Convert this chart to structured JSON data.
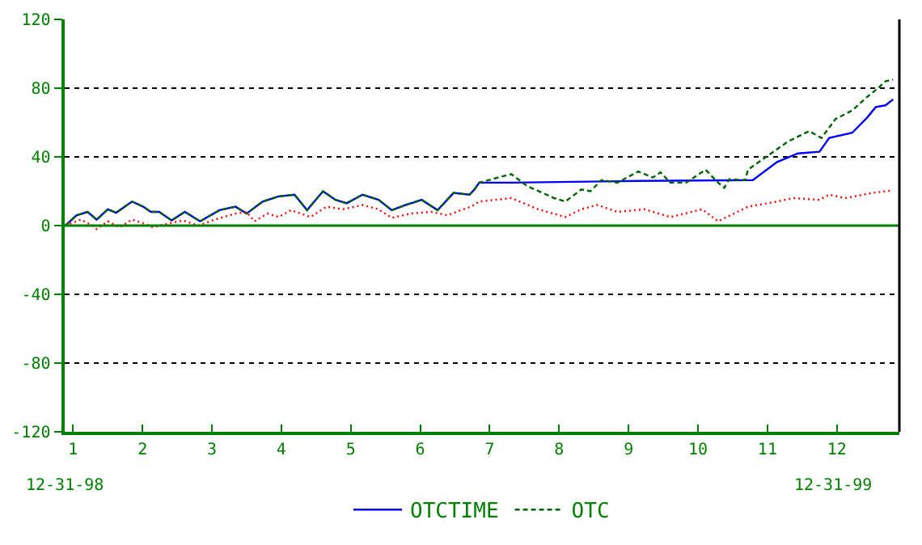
{
  "chart_data": {
    "type": "line",
    "xlim": [
      0.88,
      12.9
    ],
    "xticks": [
      1,
      2,
      3,
      4,
      5,
      6,
      7,
      8,
      9,
      10,
      11,
      12
    ],
    "ylim": [
      -120,
      120
    ],
    "yticks": [
      -120,
      -80,
      -40,
      0,
      40,
      80,
      120
    ],
    "grid": "y",
    "legend": "bottom",
    "ref_lines": [
      {
        "axis": "y",
        "value": 0,
        "color": "#008000"
      }
    ],
    "annotations": [
      "12-31-98",
      "12-31-99"
    ],
    "series": [
      {
        "name": "OTCTIME",
        "color": "#0000ff",
        "line_style": "solid",
        "x": [
          0.89,
          1.05,
          1.21,
          1.34,
          1.5,
          1.62,
          1.85,
          2.01,
          2.12,
          2.24,
          2.42,
          2.61,
          2.83,
          3.11,
          3.34,
          3.5,
          3.73,
          3.96,
          4.19,
          4.37,
          4.6,
          4.78,
          4.94,
          5.17,
          5.4,
          5.59,
          5.79,
          6.02,
          6.25,
          6.48,
          6.71,
          6.78,
          6.85,
          7.31,
          9.14,
          10.79,
          11.14,
          11.44,
          11.75,
          11.89,
          12.22,
          12.44,
          12.56,
          12.7,
          12.81
        ],
        "values": [
          0,
          6,
          8,
          3.5,
          9.5,
          7.5,
          14,
          11,
          8,
          8,
          3,
          8,
          2.5,
          9,
          11,
          7,
          14,
          17,
          18,
          9,
          20,
          15,
          13,
          18,
          15,
          9,
          12,
          15,
          9,
          19,
          18,
          21,
          25,
          25,
          26,
          26.5,
          37,
          42,
          43,
          51,
          54,
          63,
          69,
          70,
          73.5
        ]
      },
      {
        "name": "OTC",
        "color": "#006400",
        "line_style": "dashed",
        "x": [
          0.89,
          1.05,
          1.21,
          1.34,
          1.5,
          1.62,
          1.85,
          2.01,
          2.12,
          2.24,
          2.42,
          2.61,
          2.83,
          3.11,
          3.34,
          3.5,
          3.73,
          3.96,
          4.19,
          4.37,
          4.6,
          4.78,
          4.94,
          5.17,
          5.4,
          5.59,
          5.79,
          6.02,
          6.25,
          6.48,
          6.71,
          6.78,
          6.85,
          7.31,
          7.54,
          7.93,
          8.09,
          8.32,
          8.45,
          8.61,
          8.84,
          9.14,
          9.35,
          9.46,
          9.6,
          9.83,
          10.11,
          10.29,
          10.38,
          10.45,
          10.68,
          10.72,
          10.98,
          11.3,
          11.6,
          11.78,
          11.98,
          12.22,
          12.44,
          12.58,
          12.7,
          12.81
        ],
        "values": [
          0,
          6,
          8,
          3.5,
          9.5,
          7.5,
          14,
          11,
          8,
          8,
          3,
          8,
          2.5,
          9,
          11,
          7,
          14,
          17,
          18,
          9,
          20,
          15,
          13,
          18,
          15,
          9,
          12,
          15,
          9,
          19,
          18,
          21,
          25,
          30,
          23,
          16,
          14,
          21,
          20,
          26.5,
          25,
          31.5,
          28,
          31,
          25,
          25,
          32.5,
          25,
          22,
          27,
          26.5,
          32.5,
          40,
          49,
          55,
          51,
          62,
          67,
          75,
          79.5,
          84,
          85
        ]
      },
      {
        "color": "#ff0000",
        "line_style": "dotted",
        "x": [
          0.89,
          1.11,
          1.28,
          1.34,
          1.5,
          1.67,
          1.85,
          2.03,
          2.15,
          2.35,
          2.58,
          2.81,
          3.04,
          3.34,
          3.5,
          3.61,
          3.8,
          3.96,
          4.14,
          4.42,
          4.65,
          4.88,
          5.17,
          5.4,
          5.59,
          5.86,
          6.16,
          6.39,
          6.62,
          6.73,
          6.85,
          7.31,
          7.7,
          8.09,
          8.32,
          8.55,
          8.84,
          9.23,
          9.6,
          10.06,
          10.29,
          10.52,
          10.72,
          11.14,
          11.37,
          11.75,
          11.89,
          12.12,
          12.51,
          12.81
        ],
        "values": [
          0,
          3.5,
          0,
          -2,
          2.5,
          -1,
          3.5,
          1,
          -1,
          1,
          3,
          0,
          3.5,
          7,
          8,
          2.5,
          7,
          5,
          9,
          5,
          11,
          9.5,
          12,
          9.5,
          4.5,
          7,
          8,
          6,
          9.5,
          11,
          14,
          16,
          9.5,
          5,
          9.5,
          12,
          8,
          9.5,
          5,
          9.5,
          2.5,
          7,
          11,
          14,
          16,
          15,
          18,
          16,
          19,
          20.5
        ]
      }
    ]
  }
}
